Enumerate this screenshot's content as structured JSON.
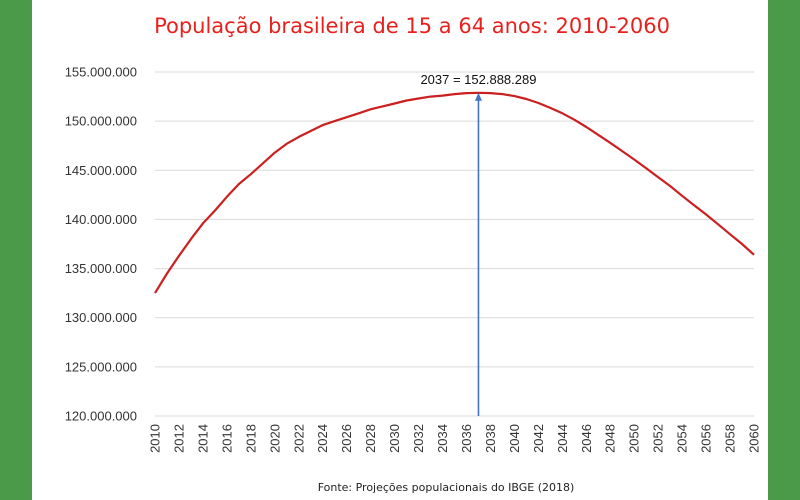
{
  "chart_data": {
    "type": "line",
    "title": "População brasileira de 15 a 64 anos: 2010-2060",
    "source": "Fonte: Projeções populacionais do IBGE (2018)",
    "xlabel": "",
    "ylabel": "",
    "ylim": [
      120000000,
      155000000
    ],
    "yticks": [
      120000000,
      125000000,
      130000000,
      135000000,
      140000000,
      145000000,
      150000000,
      155000000
    ],
    "ytick_labels": [
      "120.000.000",
      "125.000.000",
      "130.000.000",
      "135.000.000",
      "140.000.000",
      "145.000.000",
      "150.000.000",
      "155.000.000"
    ],
    "xlim": [
      2010,
      2060
    ],
    "xtick_labels": [
      "2010",
      "2012",
      "2014",
      "2016",
      "2018",
      "2020",
      "2022",
      "2024",
      "2026",
      "2028",
      "2030",
      "2032",
      "2034",
      "2036",
      "2038",
      "2040",
      "2042",
      "2044",
      "2046",
      "2048",
      "2050",
      "2052",
      "2054",
      "2056",
      "2058",
      "2060"
    ],
    "grid": true,
    "series_color": "#cc1f1f",
    "annotation_color": "#4472c4",
    "series": [
      {
        "x": [
          2010,
          2011,
          2012,
          2013,
          2014,
          2015,
          2016,
          2017,
          2018,
          2019,
          2020,
          2021,
          2022,
          2023,
          2024,
          2025,
          2026,
          2027,
          2028,
          2029,
          2030,
          2031,
          2032,
          2033,
          2034,
          2035,
          2036,
          2037,
          2038,
          2039,
          2040,
          2041,
          2042,
          2043,
          2044,
          2045,
          2046,
          2047,
          2048,
          2049,
          2050,
          2051,
          2052,
          2053,
          2054,
          2055,
          2056,
          2057,
          2058,
          2059,
          2060
        ],
        "values": [
          132500000,
          134500000,
          136300000,
          138000000,
          139600000,
          140900000,
          142300000,
          143600000,
          144600000,
          145700000,
          146800000,
          147700000,
          148400000,
          149000000,
          149600000,
          150000000,
          150400000,
          150800000,
          151200000,
          151500000,
          151800000,
          152100000,
          152300000,
          152500000,
          152600000,
          152750000,
          152850000,
          152888289,
          152850000,
          152750000,
          152550000,
          152250000,
          151850000,
          151350000,
          150800000,
          150150000,
          149400000,
          148600000,
          147800000,
          146950000,
          146100000,
          145200000,
          144300000,
          143400000,
          142400000,
          141450000,
          140500000,
          139500000,
          138500000,
          137500000,
          136400000
        ]
      }
    ],
    "annotation": {
      "x": 2037,
      "value": 152888289,
      "label": "2037 = 152.888.289"
    }
  }
}
